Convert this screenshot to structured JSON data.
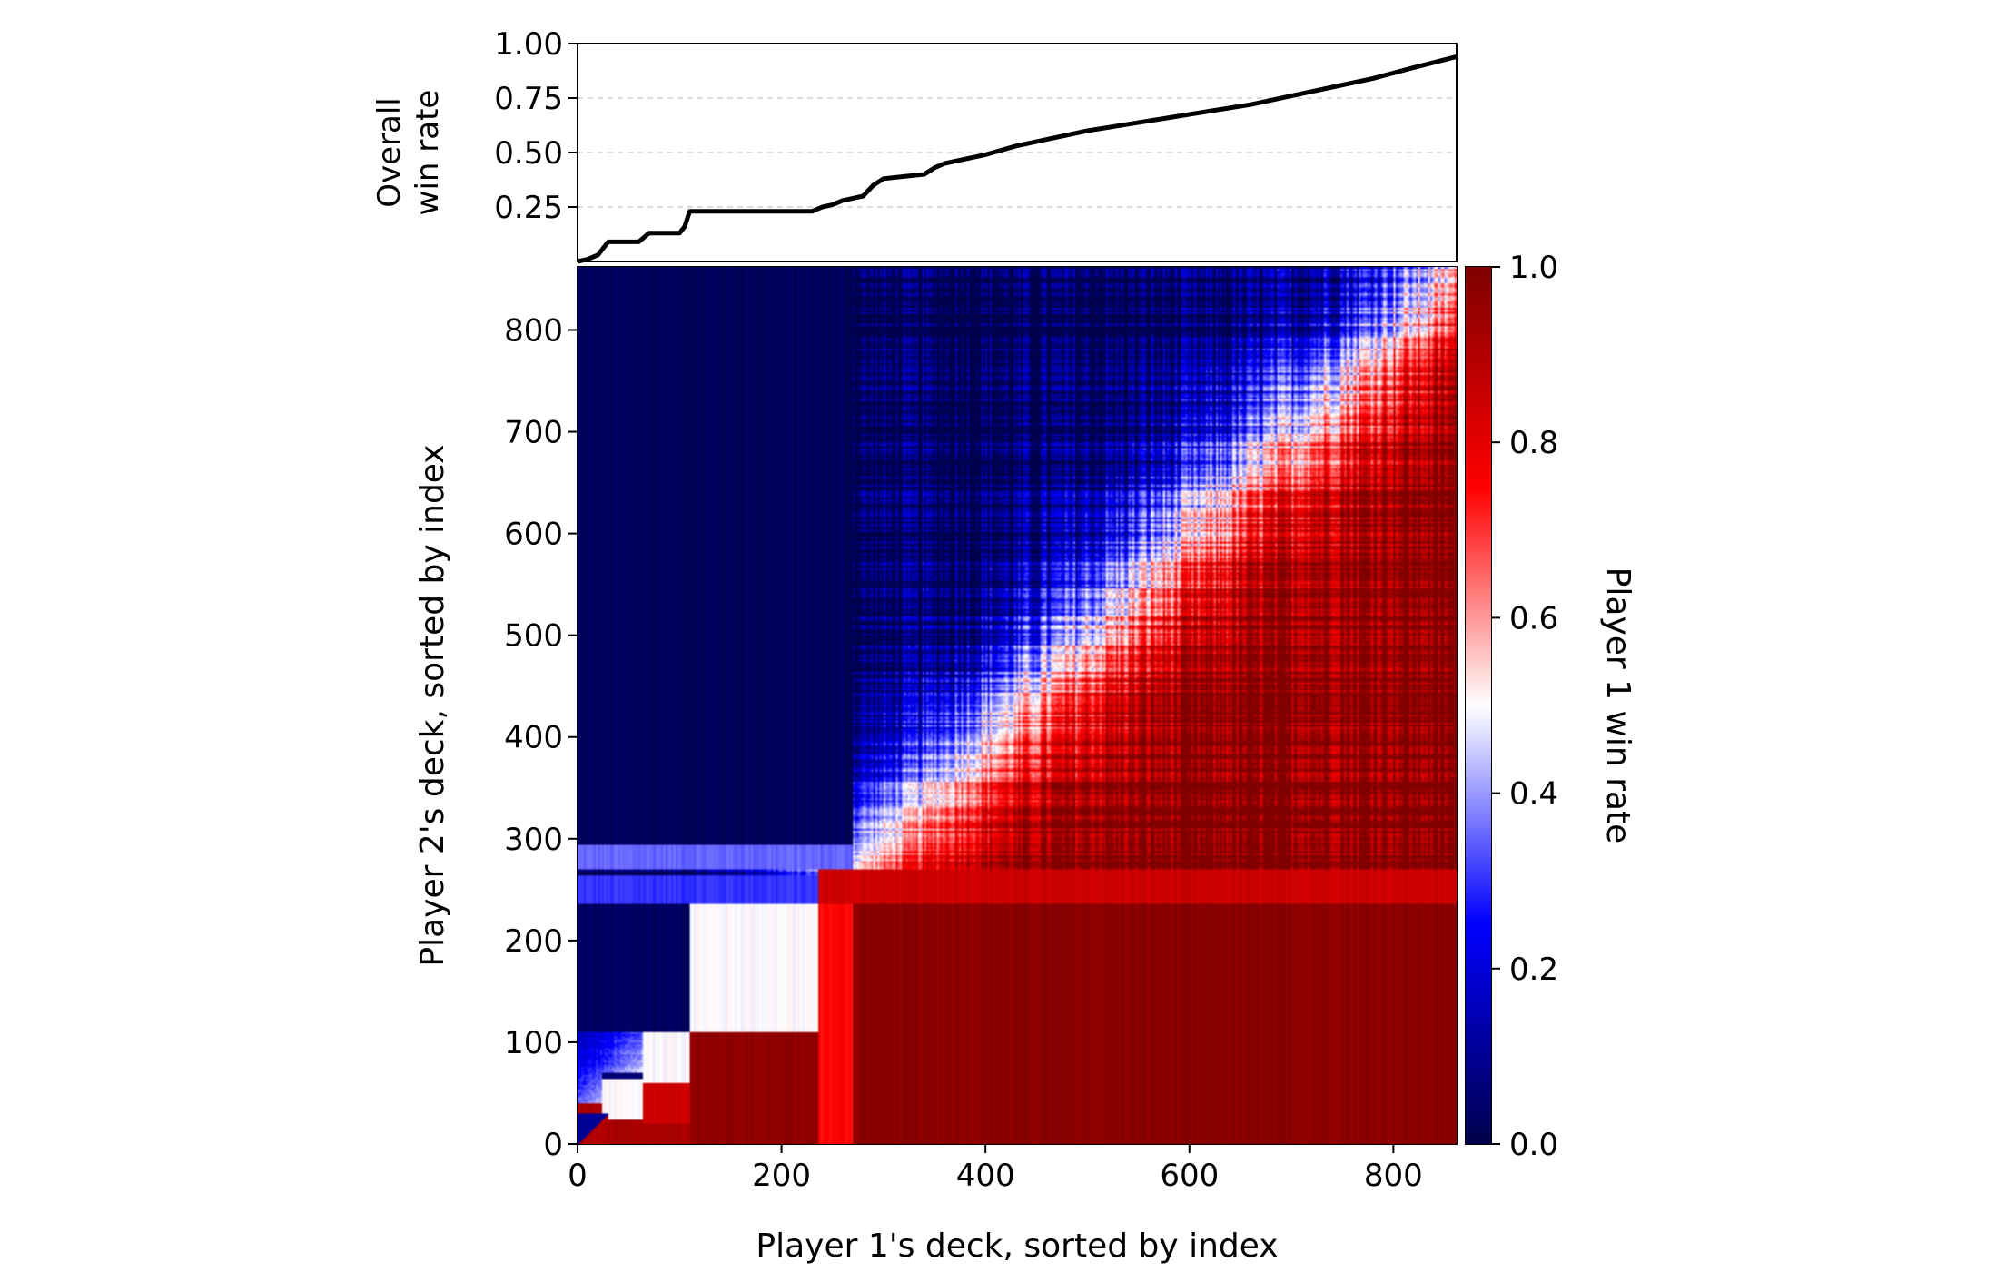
{
  "chart_data": [
    {
      "type": "line",
      "ylabel_lines": [
        "Overall",
        "win rate"
      ],
      "xlim": [
        0,
        862
      ],
      "ylim": [
        0.0,
        1.0
      ],
      "yticks": [
        0.25,
        0.5,
        0.75,
        1.0
      ],
      "ytick_labels": [
        "0.25",
        "0.50",
        "0.75",
        "1.00"
      ],
      "grid": "horizontal-dashed",
      "series": [
        {
          "x": [
            0,
            10,
            20,
            30,
            45,
            60,
            70,
            85,
            100,
            105,
            110,
            115,
            150,
            200,
            230,
            240,
            250,
            260,
            270,
            280,
            290,
            300,
            320,
            340,
            350,
            360,
            380,
            400,
            430,
            460,
            500,
            540,
            580,
            620,
            660,
            700,
            740,
            780,
            820,
            862
          ],
          "y": [
            0.0,
            0.01,
            0.03,
            0.09,
            0.09,
            0.09,
            0.13,
            0.13,
            0.13,
            0.16,
            0.23,
            0.23,
            0.23,
            0.23,
            0.23,
            0.25,
            0.26,
            0.28,
            0.29,
            0.3,
            0.35,
            0.38,
            0.39,
            0.4,
            0.43,
            0.45,
            0.47,
            0.49,
            0.53,
            0.56,
            0.6,
            0.63,
            0.66,
            0.69,
            0.72,
            0.76,
            0.8,
            0.84,
            0.89,
            0.94
          ]
        }
      ]
    },
    {
      "type": "heatmap",
      "xlabel": "Player 1's deck, sorted by index",
      "ylabel": "Player 2's deck, sorted by index",
      "xlim": [
        0,
        862
      ],
      "ylim": [
        0,
        862
      ],
      "xticks": [
        0,
        200,
        400,
        600,
        800
      ],
      "xtick_labels": [
        "0",
        "200",
        "400",
        "600",
        "800"
      ],
      "yticks": [
        0,
        100,
        200,
        300,
        400,
        500,
        600,
        700,
        800
      ],
      "ytick_labels": [
        "0",
        "100",
        "200",
        "300",
        "400",
        "500",
        "600",
        "700",
        "800"
      ],
      "colormap": "seismic",
      "colorbar": {
        "label": "Player 1 win rate",
        "range": [
          0.0,
          1.0
        ],
        "ticks": [
          0.0,
          0.2,
          0.4,
          0.6,
          0.8,
          1.0
        ],
        "tick_labels": [
          "0.0",
          "0.2",
          "0.4",
          "0.6",
          "0.8",
          "1.0"
        ],
        "colors": [
          "#00004c",
          "#0000ff",
          "#ffffff",
          "#ff0000",
          "#800000"
        ]
      },
      "blocks": [
        {
          "x": [
            0,
            110
          ],
          "y": [
            0,
            40
          ],
          "value": 0.92
        },
        {
          "x": [
            25,
            65
          ],
          "y": [
            40,
            70
          ],
          "value": 0.05
        },
        {
          "x": [
            25,
            65
          ],
          "y": [
            25,
            65
          ],
          "value": 0.5
        },
        {
          "x": [
            65,
            110
          ],
          "y": [
            20,
            60
          ],
          "value": 0.85
        },
        {
          "x": [
            65,
            110
          ],
          "y": [
            60,
            110
          ],
          "value": 0.5
        },
        {
          "x": [
            110,
            235
          ],
          "y": [
            0,
            110
          ],
          "value": 0.97
        },
        {
          "x": [
            110,
            235
          ],
          "y": [
            110,
            235
          ],
          "value": 0.5
        },
        {
          "x": [
            0,
            110
          ],
          "y": [
            110,
            235
          ],
          "value": 0.03
        },
        {
          "x": [
            0,
            235
          ],
          "y": [
            235,
            265
          ],
          "value": 0.3
        },
        {
          "x": [
            235,
            270
          ],
          "y": [
            0,
            235
          ],
          "value": 0.75
        },
        {
          "x": [
            270,
            862
          ],
          "y": [
            0,
            235
          ],
          "value": 0.98
        },
        {
          "x": [
            235,
            862
          ],
          "y": [
            235,
            270
          ],
          "value": 0.85
        },
        {
          "x": [
            0,
            270
          ],
          "y": [
            270,
            295
          ],
          "value": 0.35
        },
        {
          "x": [
            0,
            270
          ],
          "y": [
            295,
            862
          ],
          "value": 0.02
        }
      ]
    }
  ]
}
